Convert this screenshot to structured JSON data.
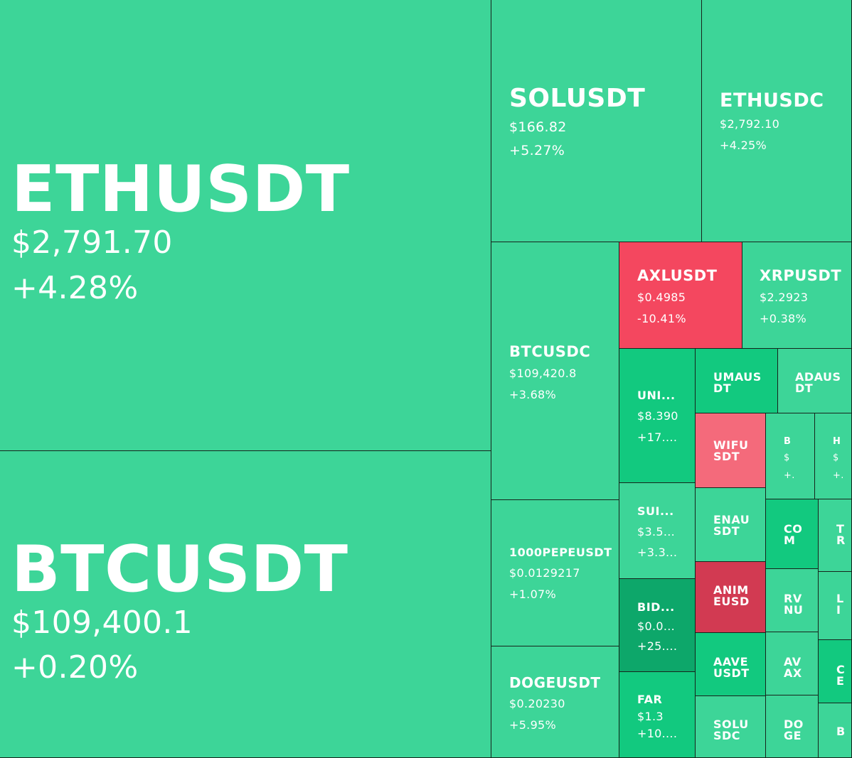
{
  "chart_data": {
    "type": "treemap",
    "title": "",
    "colors": {
      "up": "#3dd598",
      "up_strong": "#12c97f",
      "up_deep": "#0da76a",
      "down": "#f4475f",
      "down_light": "#f46a7b",
      "down_deep": "#d23a52"
    },
    "tiles": [
      {
        "symbol": "ETHUSDT",
        "price": "$2,791.70",
        "change": "+4.28%",
        "color": "up"
      },
      {
        "symbol": "BTCUSDT",
        "price": "$109,400.1",
        "change": "+0.20%",
        "color": "up"
      },
      {
        "symbol": "SOLUSDT",
        "price": "$166.82",
        "change": "+5.27%",
        "color": "up"
      },
      {
        "symbol": "ETHUSDC",
        "price": "$2,792.10",
        "change": "+4.25%",
        "color": "up"
      },
      {
        "symbol": "BTCUSDC",
        "price": "$109,420.8",
        "change": "+3.68%",
        "color": "up"
      },
      {
        "symbol": "AXLUSDT",
        "price": "$0.4985",
        "change": "-10.41%",
        "color": "down"
      },
      {
        "symbol": "XRPUSDT",
        "price": "$2.2923",
        "change": "+0.38%",
        "color": "up"
      },
      {
        "symbol": "1000PEPEUSDT",
        "price": "$0.0129217",
        "change": "+1.07%",
        "color": "up"
      },
      {
        "symbol": "DOGEUSDT",
        "price": "$0.20230",
        "change": "+5.95%",
        "color": "up"
      },
      {
        "symbol": "UNI...",
        "price": "$8.390",
        "change": "+17....",
        "color": "up_strong"
      },
      {
        "symbol": "UMAUS\nDT",
        "price": "",
        "change": "",
        "color": "up_strong"
      },
      {
        "symbol": "ADAUS\nDT",
        "price": "",
        "change": "",
        "color": "up"
      },
      {
        "symbol": "WIFU\nSDT",
        "price": "",
        "change": "",
        "color": "down_light"
      },
      {
        "symbol": "B",
        "price": "$",
        "change": "+.",
        "color": "up"
      },
      {
        "symbol": "H",
        "price": "$",
        "change": "+.",
        "color": "up"
      },
      {
        "symbol": "SUI...",
        "price": "$3.5...",
        "change": "+3.3...",
        "color": "up"
      },
      {
        "symbol": "ENAU\nSDT",
        "price": "",
        "change": "",
        "color": "up"
      },
      {
        "symbol": "CO\nM",
        "price": "",
        "change": "",
        "color": "up_strong"
      },
      {
        "symbol": "T\nR",
        "price": "",
        "change": "",
        "color": "up"
      },
      {
        "symbol": "BID...",
        "price": "$0.0...",
        "change": "+25....",
        "color": "up_deep"
      },
      {
        "symbol": "ANIM\nEUSD",
        "price": "",
        "change": "",
        "color": "down_deep"
      },
      {
        "symbol": "RV\nNU",
        "price": "",
        "change": "",
        "color": "up"
      },
      {
        "symbol": "L\nI",
        "price": "",
        "change": "",
        "color": "up"
      },
      {
        "symbol": "AAVE\nUSDT",
        "price": "",
        "change": "",
        "color": "up_strong"
      },
      {
        "symbol": "AV\nAX",
        "price": "",
        "change": "",
        "color": "up"
      },
      {
        "symbol": "C\nE",
        "price": "",
        "change": "",
        "color": "up_strong"
      },
      {
        "symbol": "FAR",
        "price": "$1.3",
        "change": "+10....",
        "color": "up_strong"
      },
      {
        "symbol": "SOLU\nSDC",
        "price": "",
        "change": "",
        "color": "up"
      },
      {
        "symbol": "DO\nGE",
        "price": "",
        "change": "",
        "color": "up"
      },
      {
        "symbol": "B",
        "price": "",
        "change": "",
        "color": "up"
      }
    ]
  }
}
